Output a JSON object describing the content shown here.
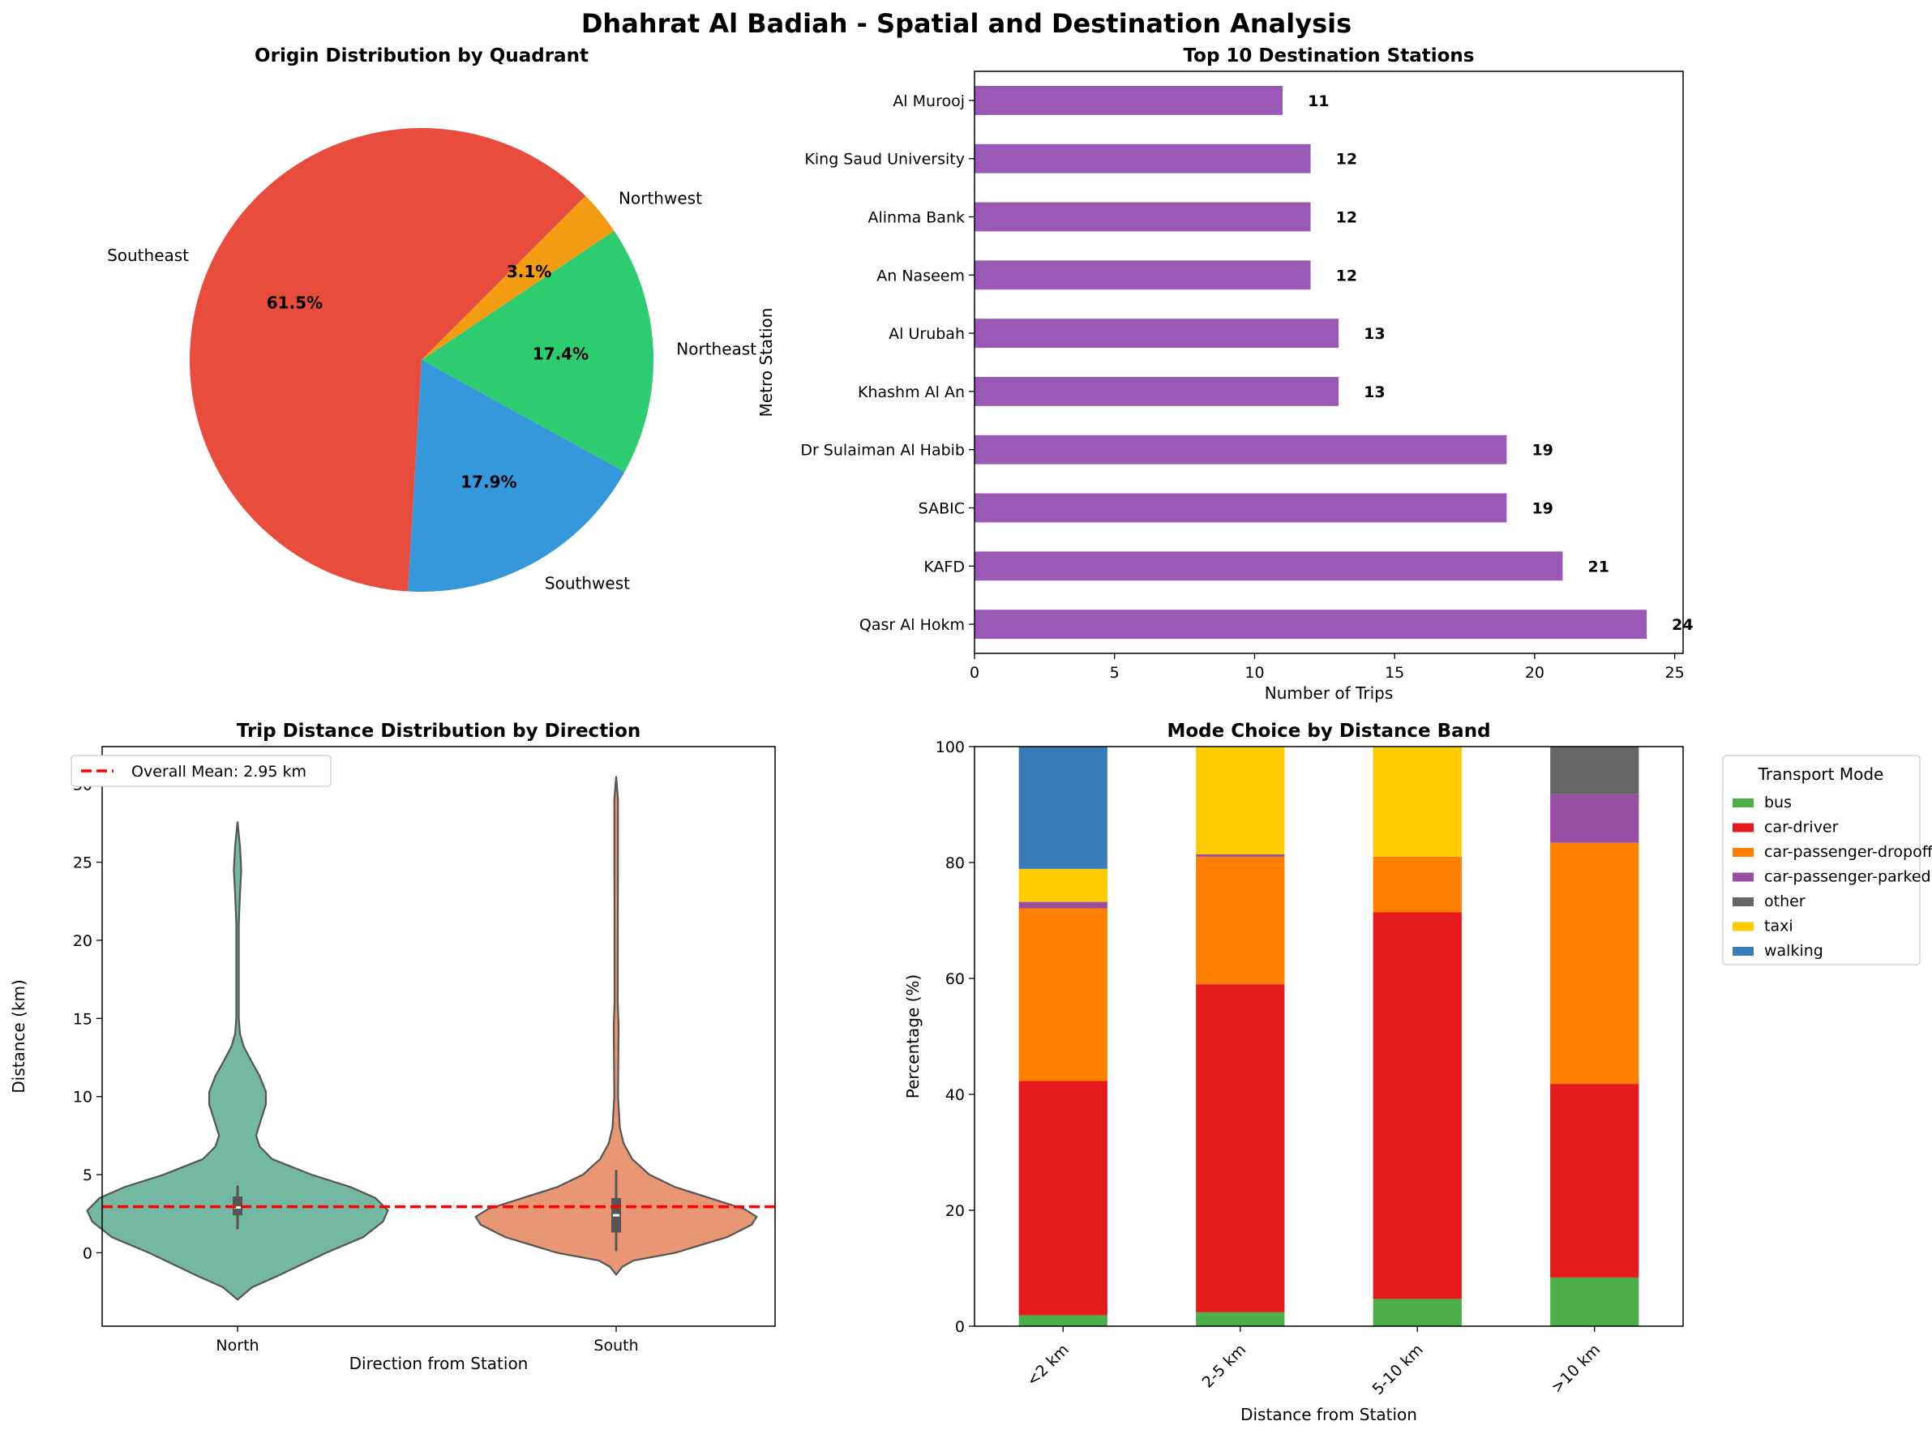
{
  "suptitle": "Dhahrat Al Badiah - Spatial and Destination Analysis",
  "chart_data": [
    {
      "type": "pie",
      "title": "Origin Distribution by Quadrant",
      "labels": [
        "Southeast",
        "Southwest",
        "Northeast",
        "Northwest"
      ],
      "values": [
        61.5,
        17.9,
        17.4,
        3.1
      ],
      "value_labels": [
        "61.5%",
        "17.9%",
        "17.4%",
        "3.1%"
      ],
      "colors": [
        "#e74c3c",
        "#3498db",
        "#2ecc71",
        "#f39c12"
      ],
      "start_angle": 45
    },
    {
      "type": "bar",
      "orientation": "horizontal",
      "title": "Top 10 Destination Stations",
      "xlabel": "Number of Trips",
      "ylabel": "Metro Station",
      "categories": [
        "Al Murooj",
        "King Saud University",
        "Alinma Bank",
        "An Naseem",
        "Al Urubah",
        "Khashm Al An",
        "Dr Sulaiman Al Habib",
        "SABIC",
        "KAFD",
        "Qasr Al Hokm"
      ],
      "values": [
        11,
        12,
        12,
        12,
        13,
        13,
        19,
        19,
        21,
        24
      ],
      "data_labels": [
        "11",
        "12",
        "12",
        "12",
        "13",
        "13",
        "19",
        "19",
        "21",
        "24"
      ],
      "xticks": [
        "0",
        "5",
        "10",
        "15",
        "20",
        "25"
      ],
      "xlim": [
        0,
        25.3
      ],
      "color": "#9b59b6"
    },
    {
      "type": "violin",
      "title": "Trip Distance Distribution by Direction",
      "xlabel": "Direction from Station",
      "ylabel": "Distance (km)",
      "categories": [
        "North",
        "South"
      ],
      "colors": [
        "#74b7a2",
        "#e89673"
      ],
      "summary": [
        {
          "median": 2.9,
          "q1": 2.4,
          "q3": 3.6,
          "whisker_low": 1.5,
          "whisker_high": 4.3,
          "min_extent": -3.0,
          "max_extent": 27.6
        },
        {
          "median": 2.4,
          "q1": 1.3,
          "q3": 3.5,
          "whisker_low": 0.1,
          "whisker_high": 5.3,
          "min_extent": -1.4,
          "max_extent": 30.5
        }
      ],
      "reference_line": {
        "value": 2.95,
        "label": "Overall Mean: 2.95 km",
        "color": "#ff0000"
      },
      "yticks": [
        "0",
        "5",
        "10",
        "15",
        "20",
        "25",
        "30"
      ],
      "ylim": [
        -4.7,
        32.4
      ]
    },
    {
      "type": "bar",
      "stacked": true,
      "title": "Mode Choice by Distance Band",
      "xlabel": "Distance from Station",
      "ylabel": "Percentage (%)",
      "categories": [
        "<2 km",
        "2-5 km",
        "5-10 km",
        ">10 km"
      ],
      "legend_title": "Transport Mode",
      "legend_position": "outside-right",
      "series": [
        {
          "name": "bus",
          "color": "#4daf4a",
          "values": [
            1.9,
            2.4,
            4.7,
            8.4
          ]
        },
        {
          "name": "car-driver",
          "color": "#e41a1c",
          "values": [
            40.4,
            56.6,
            66.7,
            33.4
          ]
        },
        {
          "name": "car-passenger-dropoff",
          "color": "#ff7f00",
          "values": [
            29.8,
            22.0,
            9.6,
            41.6
          ]
        },
        {
          "name": "car-passenger-parked",
          "color": "#984ea3",
          "values": [
            1.1,
            0.4,
            0,
            8.4
          ]
        },
        {
          "name": "other",
          "color": "#666666",
          "values": [
            0,
            0,
            0,
            8.2
          ]
        },
        {
          "name": "taxi",
          "color": "#ffcc00",
          "values": [
            5.7,
            18.6,
            19.0,
            0
          ]
        },
        {
          "name": "walking",
          "color": "#377eb8",
          "values": [
            21.1,
            0,
            0,
            0
          ]
        }
      ],
      "yticks": [
        "0",
        "20",
        "40",
        "60",
        "80",
        "100"
      ],
      "ylim": [
        0,
        100
      ]
    }
  ]
}
